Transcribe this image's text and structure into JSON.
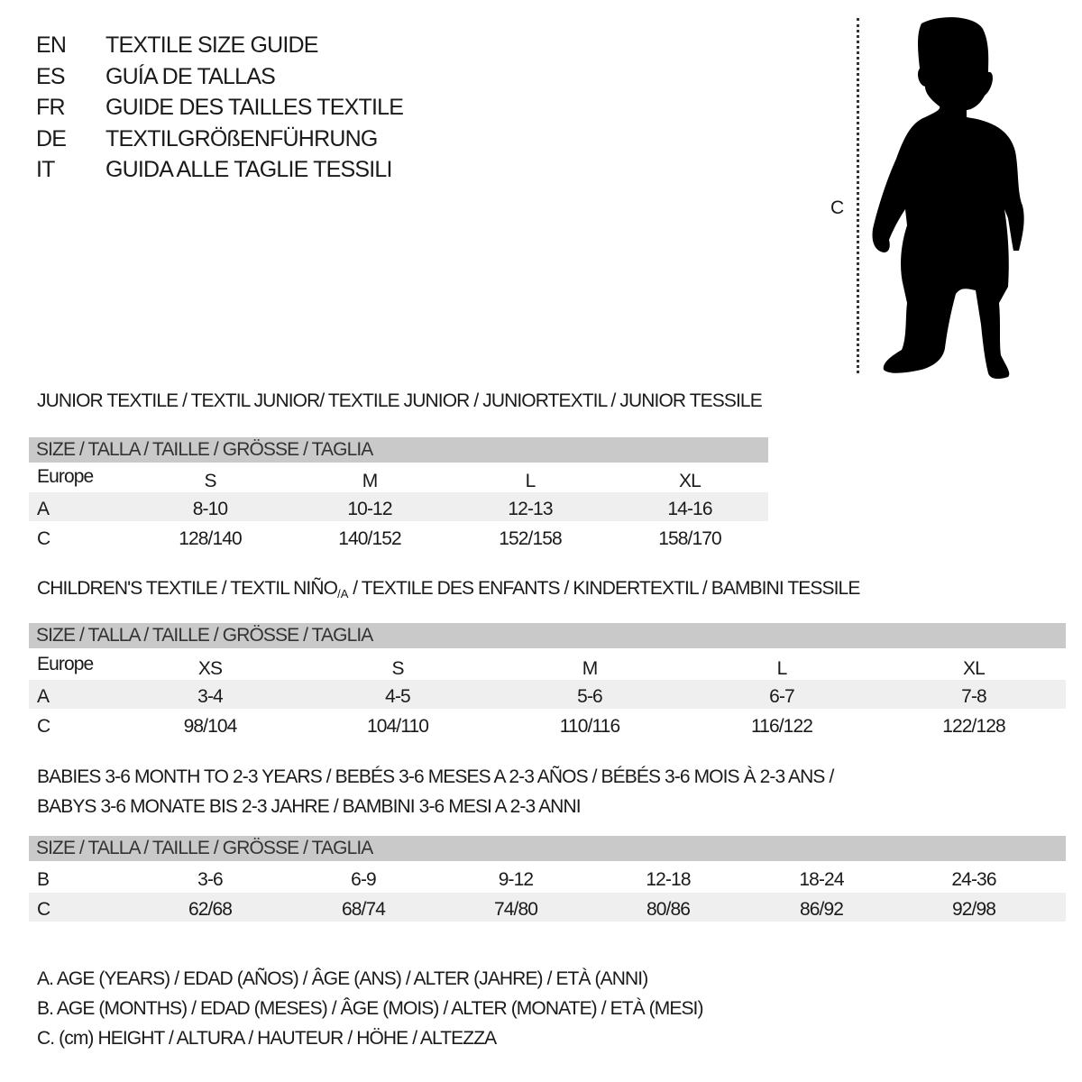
{
  "languages": [
    {
      "code": "EN",
      "title": "TEXTILE SIZE GUIDE"
    },
    {
      "code": "ES",
      "title": "GUÍA DE TALLAS"
    },
    {
      "code": "FR",
      "title": "GUIDE DES TAILLES TEXTILE"
    },
    {
      "code": "DE",
      "title": "TEXTILGRÖßENFÜHRUNG"
    },
    {
      "code": "IT",
      "title": "GUIDA ALLE TAGLIE TESSILI"
    }
  ],
  "figure": {
    "measure_label": "C",
    "icon": "child-silhouette-icon"
  },
  "size_header": "SIZE / TALLA / TAILLE / GRÖSSE / TAGLIA",
  "colors": {
    "header_band": "#c9c9c9",
    "row_shade": "#efefef",
    "text": "#1a1a1a"
  },
  "junior": {
    "heading": "JUNIOR TEXTILE / TEXTIL JUNIOR/ TEXTILE JUNIOR / JUNIORTEXTIL / JUNIOR TESSILE",
    "rows": [
      {
        "label": "Europe",
        "values": [
          "S",
          "M",
          "L",
          "XL"
        ]
      },
      {
        "label": "A",
        "values": [
          "8-10",
          "10-12",
          "12-13",
          "14-16"
        ]
      },
      {
        "label": "C",
        "values": [
          "128/140",
          "140/152",
          "152/158",
          "158/170"
        ]
      }
    ]
  },
  "children": {
    "heading_pre": "CHILDREN'S TEXTILE / TEXTIL NIÑO",
    "heading_sub": "/A",
    "heading_post": " / TEXTILE DES ENFANTS / KINDERTEXTIL / BAMBINI TESSILE",
    "rows": [
      {
        "label": "Europe",
        "values": [
          "XS",
          "S",
          "M",
          "L",
          "XL"
        ]
      },
      {
        "label": "A",
        "values": [
          "3-4",
          "4-5",
          "5-6",
          "6-7",
          "7-8"
        ]
      },
      {
        "label": "C",
        "values": [
          "98/104",
          "104/110",
          "110/116",
          "116/122",
          "122/128"
        ]
      }
    ]
  },
  "babies": {
    "heading_line1": "BABIES 3-6 MONTH TO 2-3 YEARS / BEBÉS 3-6 MESES A 2-3 AÑOS / BÉBÉS 3-6 MOIS À 2-3 ANS /",
    "heading_line2": "BABYS 3-6 MONATE BIS 2-3 JAHRE / BAMBINI 3-6 MESI A 2-3 ANNI",
    "rows": [
      {
        "label": "B",
        "values": [
          "3-6",
          "6-9",
          "9-12",
          "12-18",
          "18-24",
          "24-36"
        ]
      },
      {
        "label": "C",
        "values": [
          "62/68",
          "68/74",
          "74/80",
          "80/86",
          "86/92",
          "92/98"
        ]
      }
    ]
  },
  "legend": [
    "A. AGE (YEARS) / EDAD (AÑOS) / ÂGE (ANS) / ALTER (JAHRE) / ETÀ (ANNI)",
    "B. AGE (MONTHS) / EDAD (MESES) / ÂGE (MOIS) / ALTER (MONATE) / ETÀ (MESI)",
    "C. (cm) HEIGHT / ALTURA / HAUTEUR / HÖHE / ALTEZZA"
  ]
}
